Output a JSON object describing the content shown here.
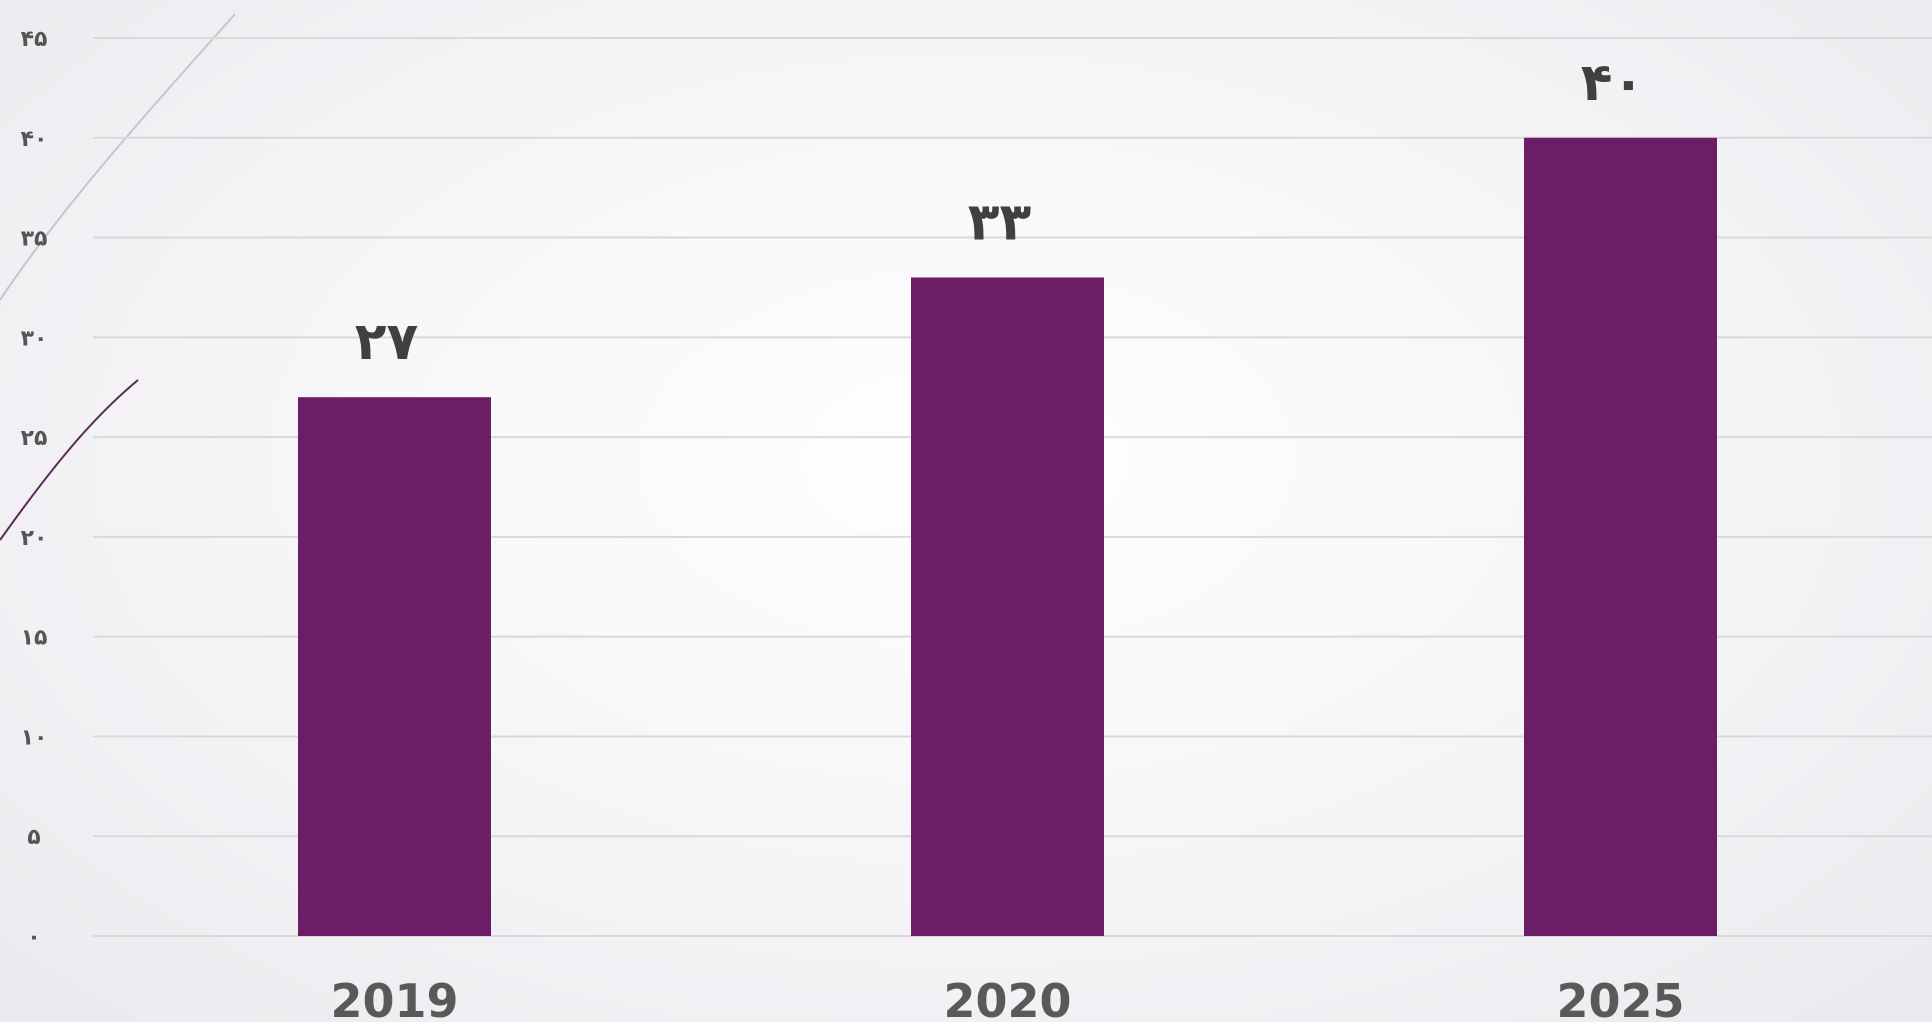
{
  "colors": {
    "bar": "#6b1d66",
    "grid": "#d9d9d9",
    "tick_text": "#555555",
    "label_text": "#404040",
    "decor_dark": "#5a2a5a",
    "decor_light": "#c8c4cc"
  },
  "chart_data": {
    "type": "bar",
    "categories": [
      "2019",
      "2020",
      "2025"
    ],
    "values": [
      27,
      33,
      40
    ],
    "data_labels": [
      "۲۷",
      "۳۳",
      "۴۰"
    ],
    "ylim": [
      0,
      45
    ],
    "yticks": [
      0,
      5,
      10,
      15,
      20,
      25,
      30,
      35,
      40,
      45
    ],
    "ytick_labels": [
      "۰",
      "۵",
      "۱۰",
      "۱۵",
      "۲۰",
      "۲۵",
      "۳۰",
      "۳۵",
      "۴۰",
      "۴۵"
    ],
    "grid": true,
    "legend": "none",
    "title": "",
    "xlabel": "",
    "ylabel": ""
  }
}
